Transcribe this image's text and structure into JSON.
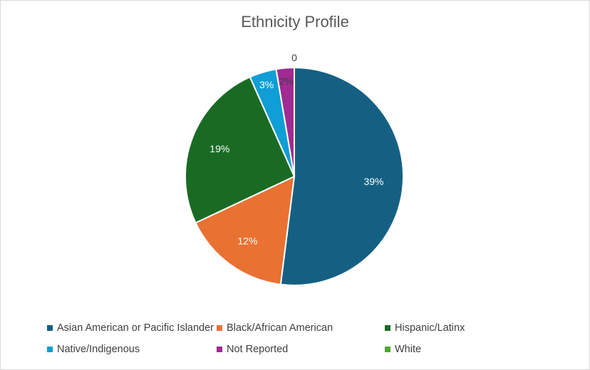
{
  "chart_data": {
    "type": "pie",
    "title": "Ethnicity Profile",
    "categories": [
      "Asian American or Pacific Islander",
      "Black/African American",
      "Hispanic/Latinx",
      "Native/Indigenous",
      "Not Reported",
      "White"
    ],
    "values": [
      39,
      12,
      19,
      3,
      2,
      0
    ],
    "data_labels": [
      "39%",
      "12%",
      "19%",
      "3%",
      "2%",
      "0"
    ],
    "colors": [
      "#156082",
      "#E97132",
      "#196B24",
      "#0F9ED5",
      "#A02B93",
      "#4EA72E"
    ],
    "legend_position": "bottom"
  }
}
